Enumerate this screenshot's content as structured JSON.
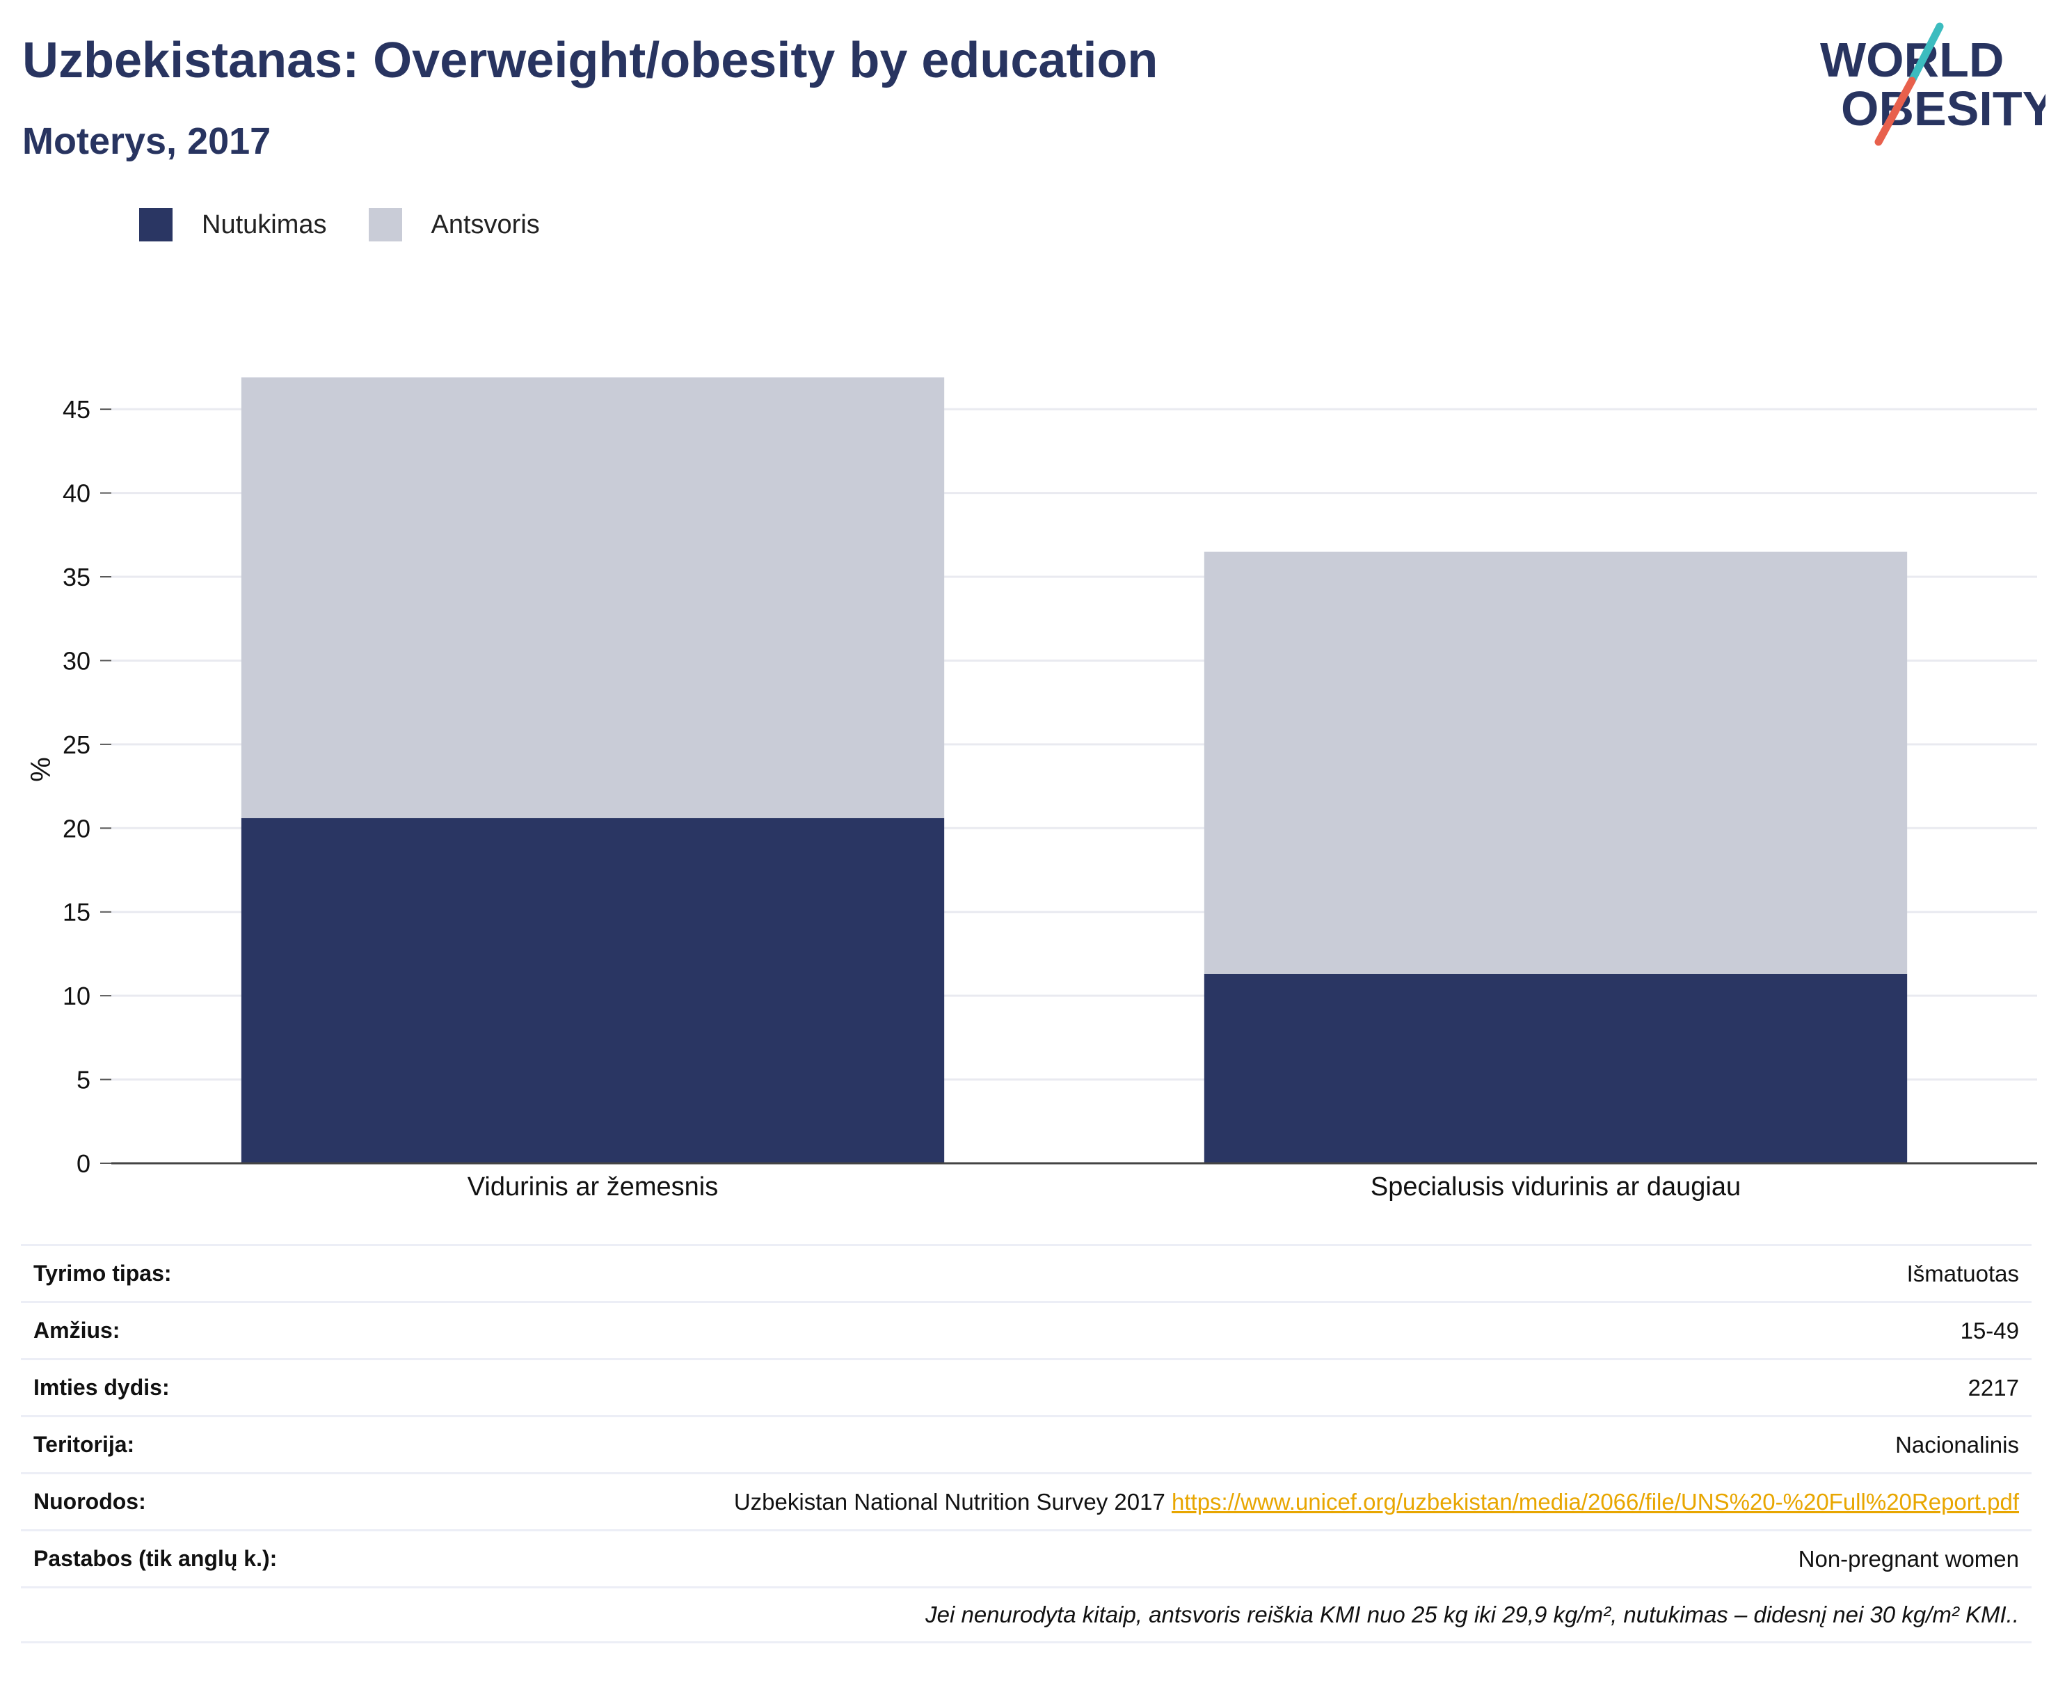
{
  "header": {
    "title": "Uzbekistanas: Overweight/obesity by education",
    "subtitle": "Moterys, 2017",
    "logo_line1": "WORLD",
    "logo_line2": "OBESITY"
  },
  "colors": {
    "title": "#283460",
    "obesity": "#2a3663",
    "overweight": "#c9ccd7",
    "logo_teal": "#3cbcbf",
    "logo_red": "#e8604c",
    "link": "#e8a600"
  },
  "chart_data": {
    "type": "bar",
    "stacked": true,
    "categories": [
      "Vidurinis ar žemesnis",
      "Specialusis vidurinis ar daugiau"
    ],
    "series": [
      {
        "name": "Nutukimas",
        "values": [
          20.6,
          11.3
        ]
      },
      {
        "name": "Antsvoris",
        "values": [
          26.3,
          25.2
        ]
      }
    ],
    "ylabel": "%",
    "xlabel": "",
    "ylim": [
      0,
      47
    ],
    "yticks": [
      0,
      5,
      10,
      15,
      20,
      25,
      30,
      35,
      40,
      45
    ],
    "grid": true,
    "legend_position": "top-left"
  },
  "info": {
    "rows": [
      {
        "label": "Tyrimo tipas:",
        "value": "Išmatuotas"
      },
      {
        "label": "Amžius:",
        "value": "15-49"
      },
      {
        "label": "Imties dydis:",
        "value": "2217"
      },
      {
        "label": "Teritorija:",
        "value": "Nacionalinis"
      },
      {
        "label": "Nuorodos:",
        "value": "Uzbekistan National Nutrition Survey 2017",
        "link": "https://www.unicef.org/uzbekistan/media/2066/file/UNS%20-%20Full%20Report.pdf"
      },
      {
        "label": "Pastabos (tik anglų k.):",
        "value": "Non-pregnant women"
      }
    ],
    "footnote": "Jei nenurodyta kitaip, antsvoris reiškia KMI nuo 25 kg iki 29,9 kg/m², nutukimas – didesnį nei 30 kg/m² KMI.."
  }
}
